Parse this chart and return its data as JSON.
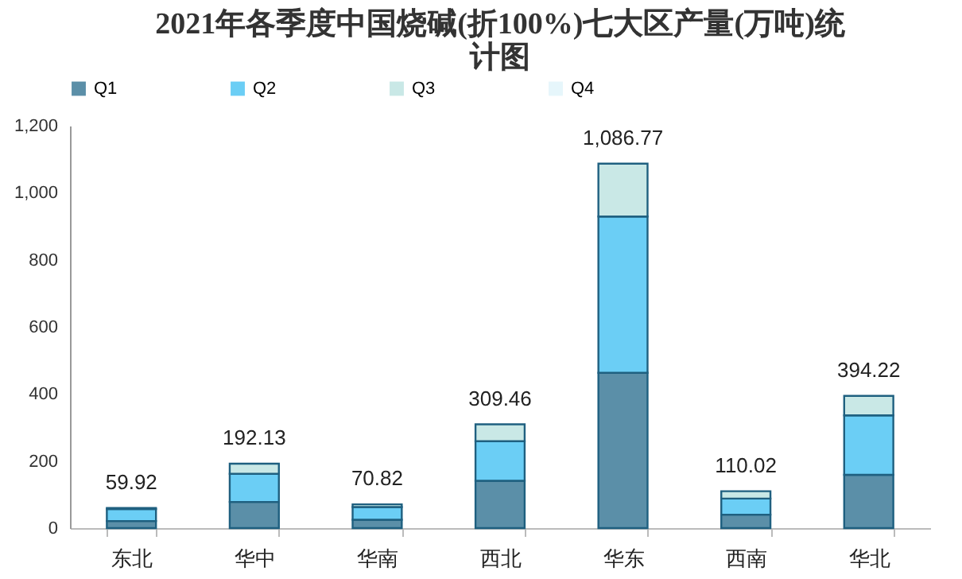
{
  "chart_data": {
    "type": "bar",
    "title": "2021年各季度中国烧碱(折100%)七大区产量(万吨)统计图",
    "categories": [
      "东北",
      "华中",
      "华南",
      "西北",
      "华东",
      "西南",
      "华北"
    ],
    "stacked": true,
    "series": [
      {
        "name": "Q1",
        "color": "#5b8fa8",
        "values": [
          21,
          78,
          25,
          141,
          463,
          40,
          159
        ]
      },
      {
        "name": "Q2",
        "color": "#6bcef5",
        "values": [
          36,
          84,
          38,
          118,
          466,
          48,
          177
        ]
      },
      {
        "name": "Q3",
        "color": "#c9e8e6",
        "values": [
          2.92,
          30.13,
          7.82,
          50.46,
          157.77,
          22.02,
          58.22
        ]
      },
      {
        "name": "Q4",
        "color": "#e6f6fb",
        "values": [
          null,
          null,
          null,
          null,
          null,
          null,
          null
        ]
      }
    ],
    "totals": [
      "59.92",
      "192.13",
      "70.82",
      "309.46",
      "1,086.77",
      "110.02",
      "394.22"
    ],
    "ylim": [
      0,
      1200
    ],
    "yticks": [
      0,
      200,
      400,
      600,
      800,
      {
        "value": 1000,
        "label": "1,000"
      },
      {
        "value": 1200,
        "label": "1,200"
      }
    ],
    "grid": false,
    "legend": "top"
  }
}
